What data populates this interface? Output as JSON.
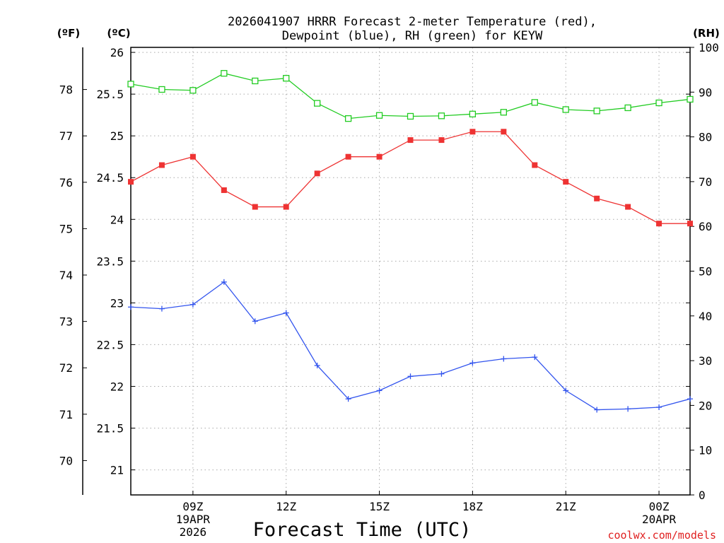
{
  "chart_data": {
    "type": "line",
    "title": [
      "2026041907 HRRR Forecast 2-meter Temperature (red),",
      "Dewpoint (blue), RH (green) for KEYW"
    ],
    "xlabel": "Forecast Time (UTC)",
    "credit": "coolwx.com/models",
    "units": {
      "fahrenheit": "(ºF)",
      "celsius": "(ºC)",
      "rh": "(RH)"
    },
    "x": [
      7,
      8,
      9,
      10,
      11,
      12,
      13,
      14,
      15,
      16,
      17,
      18,
      19,
      20,
      21,
      22,
      23,
      24,
      25
    ],
    "xlim": [
      7,
      25
    ],
    "xticks": [
      {
        "x": 9,
        "lines": [
          "09Z",
          "19APR",
          "2026"
        ]
      },
      {
        "x": 12,
        "lines": [
          "12Z"
        ]
      },
      {
        "x": 15,
        "lines": [
          "15Z"
        ]
      },
      {
        "x": 18,
        "lines": [
          "18Z"
        ]
      },
      {
        "x": 21,
        "lines": [
          "21Z"
        ]
      },
      {
        "x": 24,
        "lines": [
          "00Z",
          "20APR"
        ]
      }
    ],
    "celsius_axis": {
      "ylim": [
        20.7,
        26.06
      ],
      "ticks": [
        "21",
        "21.5",
        "22",
        "22.5",
        "23",
        "23.5",
        "24",
        "24.5",
        "25",
        "25.5",
        "26"
      ]
    },
    "fahrenheit_axis": {
      "ticks": [
        "70",
        "71",
        "72",
        "73",
        "74",
        "75",
        "76",
        "77",
        "78"
      ]
    },
    "rh_axis": {
      "ylim": [
        0,
        100
      ],
      "ticks": [
        "0",
        "10",
        "20",
        "30",
        "40",
        "50",
        "60",
        "70",
        "80",
        "90",
        "100"
      ]
    },
    "series": [
      {
        "name": "Temperature",
        "unit": "C",
        "color": "#ee3333",
        "marker": "filled-square",
        "values": [
          24.45,
          24.65,
          24.75,
          24.35,
          24.15,
          24.15,
          24.55,
          24.75,
          24.75,
          24.95,
          24.95,
          25.05,
          25.05,
          24.65,
          24.45,
          24.25,
          24.15,
          23.95,
          23.95
        ]
      },
      {
        "name": "Dewpoint",
        "unit": "C",
        "color": "#3355ee",
        "marker": "plus",
        "values": [
          22.95,
          22.93,
          22.98,
          23.25,
          22.78,
          22.88,
          22.25,
          21.85,
          21.95,
          22.12,
          22.15,
          22.28,
          22.33,
          22.35,
          21.95,
          21.72,
          21.73,
          21.75,
          21.85
        ]
      },
      {
        "name": "RH",
        "unit": "%",
        "color": "#22cc22",
        "marker": "open-square",
        "values": [
          91.8,
          90.6,
          90.4,
          94.2,
          92.5,
          93.1,
          87.5,
          84.1,
          84.8,
          84.6,
          84.7,
          85.1,
          85.5,
          87.7,
          86.1,
          85.8,
          86.5,
          87.6,
          88.4
        ]
      }
    ]
  }
}
